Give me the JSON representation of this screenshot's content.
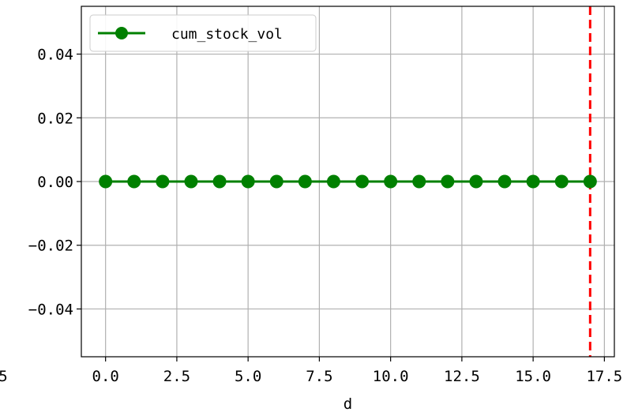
{
  "chart_data": {
    "type": "line",
    "xlabel": "d",
    "ylabel": "",
    "xlim": [
      -0.85,
      17.85
    ],
    "ylim": [
      -0.055,
      0.055
    ],
    "x_ticks": [
      0,
      2.5,
      5,
      7.5,
      10,
      12.5,
      15,
      17.5
    ],
    "x_tick_labels": [
      "0.0",
      "2.5",
      "5.0",
      "7.5",
      "10.0",
      "12.5",
      "15.0",
      "17.5"
    ],
    "clipped_left_tick_label": "5",
    "y_ticks": [
      0.04,
      0.02,
      0,
      -0.02,
      -0.04
    ],
    "y_tick_labels": [
      "0.04",
      "0.02",
      "0.00",
      "−0.02",
      "−0.04"
    ],
    "grid": true,
    "legend_position": "top-left",
    "series": [
      {
        "name": "cum_stock_vol",
        "color": "#008000",
        "marker": "circle",
        "x": [
          0,
          1,
          2,
          3,
          4,
          5,
          6,
          7,
          8,
          9,
          10,
          11,
          12,
          13,
          14,
          15,
          16,
          17
        ],
        "values": [
          0,
          0,
          0,
          0,
          0,
          0,
          0,
          0,
          0,
          0,
          0,
          0,
          0,
          0,
          0,
          0,
          0,
          0
        ]
      }
    ],
    "vertical_line": {
      "x": 17,
      "color": "#ff0000",
      "style": "dashed"
    }
  }
}
